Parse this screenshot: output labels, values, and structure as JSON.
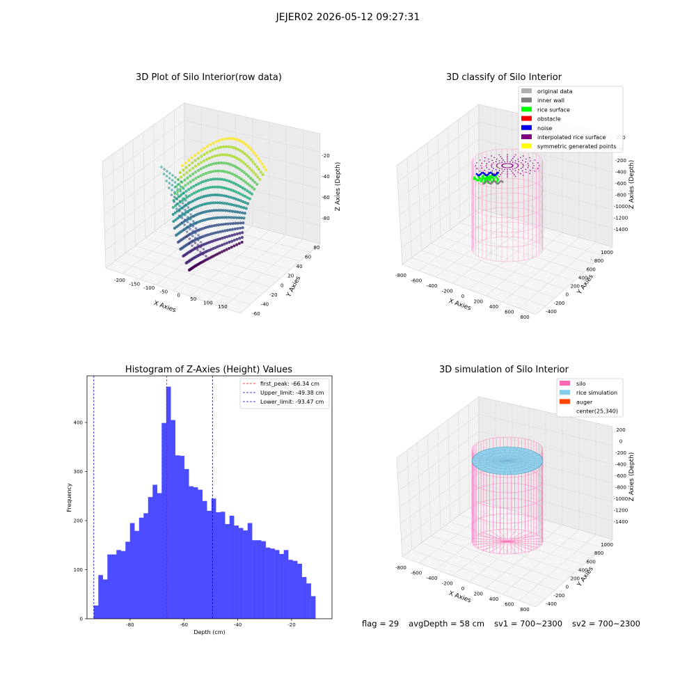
{
  "suptitle": "JEJER02 2026-05-12 09:27:31",
  "panels": {
    "raw": {
      "title": "3D Plot of Silo Interior(row data)",
      "xlabel": "X Axies",
      "ylabel": "Y Axies",
      "zlabel": "Z Axies (Depth)",
      "xticks": [
        "-200",
        "-150",
        "-100",
        "-50",
        "0",
        "50",
        "100",
        "150"
      ],
      "yticks": [
        "-60",
        "-40",
        "-20",
        "0",
        "20",
        "40",
        "60",
        "80"
      ],
      "zticks": [
        "-20",
        "-40",
        "-60",
        "-80"
      ]
    },
    "classify": {
      "title": "3D classify of Silo Interior",
      "xlabel": "X Axies",
      "ylabel": "Y Axies",
      "zlabel": "Z Axies (Depth)",
      "xticks": [
        "-800",
        "-600",
        "-400",
        "-200",
        "0",
        "200",
        "400",
        "600",
        "800"
      ],
      "yticks": [
        "-400",
        "-200",
        "0",
        "200",
        "400",
        "600",
        "800",
        "1000"
      ],
      "zticks": [
        "200",
        "0",
        "-200",
        "-400",
        "-600",
        "-800",
        "-1000",
        "-1200",
        "-1400"
      ],
      "legend": [
        {
          "label": "original data",
          "color": "#b0b0b0"
        },
        {
          "label": "inner wall",
          "color": "#808080"
        },
        {
          "label": "rice surface",
          "color": "#00ff00"
        },
        {
          "label": "obstacle",
          "color": "#ff0000"
        },
        {
          "label": "noise",
          "color": "#0000ee"
        },
        {
          "label": "interpolated rice surface",
          "color": "#800080"
        },
        {
          "label": "symmetric generated points",
          "color": "#ffff00"
        }
      ]
    },
    "simulation": {
      "title": "3D simulation of Silo Interior",
      "xlabel": "X Axies",
      "ylabel": "Y Axies",
      "zlabel": "Z Axies (Depth)",
      "xticks": [
        "-800",
        "-600",
        "-400",
        "-200",
        "0",
        "200",
        "400",
        "600",
        "800"
      ],
      "yticks": [
        "-400",
        "-200",
        "0",
        "200",
        "400",
        "600",
        "800",
        "1000"
      ],
      "zticks": [
        "200",
        "0",
        "-200",
        "-400",
        "-600",
        "-800",
        "-1000",
        "-1200",
        "-1400"
      ],
      "legend": [
        {
          "label": "silo",
          "color": "#ff69b4"
        },
        {
          "label": "rice simulation",
          "color": "#87ceeb"
        },
        {
          "label": "auger",
          "color": "#ff4500"
        },
        {
          "label": "center(25,340)",
          "color": "none"
        }
      ]
    }
  },
  "chart_data": {
    "type": "bar",
    "title": "Histogram of Z-Axies (Height) Values",
    "xlabel": "Depth (cm)",
    "ylabel": "Frequency",
    "xlim": [
      -96,
      -5
    ],
    "ylim": [
      0,
      495
    ],
    "xticks": [
      -80,
      -60,
      -40,
      -20
    ],
    "yticks": [
      0,
      100,
      200,
      300,
      400
    ],
    "bin_start": -93.47,
    "bin_width": 1.68,
    "values": [
      27,
      89,
      80,
      131,
      131,
      140,
      138,
      157,
      195,
      179,
      206,
      215,
      248,
      273,
      256,
      399,
      473,
      405,
      333,
      332,
      305,
      270,
      268,
      263,
      240,
      220,
      245,
      217,
      218,
      193,
      210,
      190,
      185,
      180,
      195,
      160,
      160,
      158,
      145,
      143,
      140,
      132,
      140,
      120,
      118,
      112,
      85,
      72,
      46
    ],
    "bar_color": "#4b4bff",
    "lines": [
      {
        "label": "first_peak: -66.34 cm",
        "x": -66.34,
        "color": "#ff0000"
      },
      {
        "label": "Upper_limit: -49.38 cm",
        "x": -49.38,
        "color": "#0000cc"
      },
      {
        "label": "Lower_limit: -93.47 cm",
        "x": -93.47,
        "color": "#0000cc"
      }
    ],
    "legend_position": "top-right"
  },
  "footer": {
    "flag": "flag = 29",
    "avg_depth": "avgDepth = 58 cm",
    "sv1": "sv1 = 700~2300",
    "sv2": "sv2 = 700~2300"
  }
}
